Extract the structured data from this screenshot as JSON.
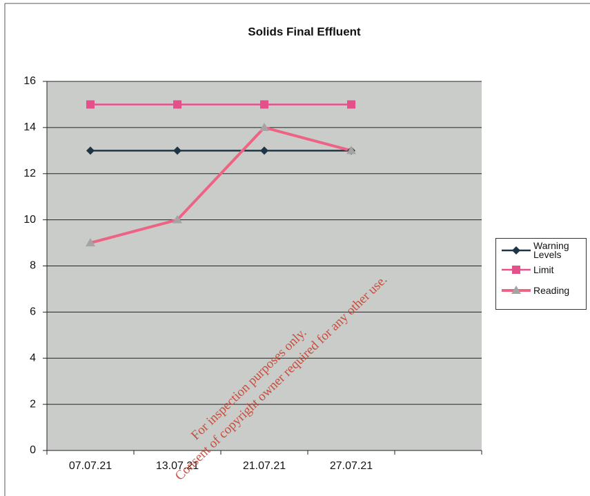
{
  "chart_data": {
    "type": "line",
    "title": "Solids Final Effluent",
    "categories": [
      "07.07.21",
      "13.07.21",
      "21.07.21",
      "27.07.21",
      null
    ],
    "series": [
      {
        "name": "Warning Levels",
        "color": "#1f3545",
        "marker": "diamond",
        "marker_color": "#1f3545",
        "values": [
          13,
          13,
          13,
          13,
          null
        ]
      },
      {
        "name": "Limit",
        "color": "#e4508a",
        "marker": "square",
        "marker_color": "#e4508a",
        "values": [
          15,
          15,
          15,
          15,
          null
        ]
      },
      {
        "name": "Reading",
        "color": "#ee6384",
        "marker": "triangle",
        "marker_color": "#a4a4a4",
        "values": [
          9,
          10,
          14,
          13,
          null
        ]
      }
    ],
    "ylim": [
      0,
      16
    ],
    "yticks": [
      0,
      2,
      4,
      6,
      8,
      10,
      12,
      14,
      16
    ],
    "grid": true,
    "plot_background": "#c9ccc9",
    "legend": "right",
    "watermark": [
      "For inspection purposes only.",
      "Consent of copyright owner required for any other use."
    ]
  }
}
